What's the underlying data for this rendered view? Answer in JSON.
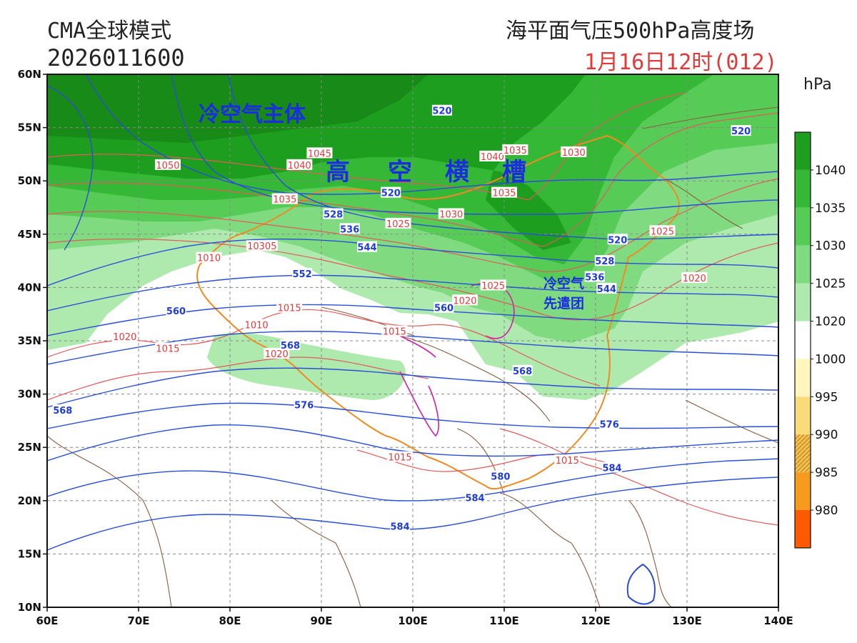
{
  "header": {
    "model": "CMA全球模式",
    "run": "2026011600",
    "product": "海平面气压500hPa高度场",
    "valid": "1月16日12时(012)",
    "unit": "hPa"
  },
  "annotations": {
    "cold_main": "冷空气主体",
    "trough": [
      "高",
      "空",
      "横",
      "槽"
    ],
    "cold_front_1": "冷空气",
    "cold_front_2": "先遣团"
  },
  "axes": {
    "lat_labels": [
      "60N",
      "55N",
      "50N",
      "45N",
      "40N",
      "35N",
      "30N",
      "25N",
      "20N",
      "15N",
      "10N"
    ],
    "lon_labels": [
      "60E",
      "70E",
      "80E",
      "90E",
      "100E",
      "110E",
      "120E",
      "130E",
      "140E"
    ]
  },
  "height_labels": [
    {
      "t": "520",
      "lon": 103.2,
      "lat": 56.6
    },
    {
      "t": "520",
      "lon": 135.9,
      "lat": 54.7
    },
    {
      "t": "520",
      "lon": 97.6,
      "lat": 48.9
    },
    {
      "t": "528",
      "lon": 91.3,
      "lat": 46.9
    },
    {
      "t": "536",
      "lon": 93.1,
      "lat": 45.5
    },
    {
      "t": "544",
      "lon": 95.0,
      "lat": 43.8
    },
    {
      "t": "552",
      "lon": 87.9,
      "lat": 41.3
    },
    {
      "t": "520",
      "lon": 122.4,
      "lat": 44.5
    },
    {
      "t": "528",
      "lon": 121.0,
      "lat": 42.5
    },
    {
      "t": "536",
      "lon": 119.9,
      "lat": 41.0
    },
    {
      "t": "544",
      "lon": 121.2,
      "lat": 39.9
    },
    {
      "t": "560",
      "lon": 74.1,
      "lat": 37.8
    },
    {
      "t": "568",
      "lon": 86.6,
      "lat": 34.6
    },
    {
      "t": "560",
      "lon": 103.4,
      "lat": 38.1
    },
    {
      "t": "568",
      "lon": 112.0,
      "lat": 32.2
    },
    {
      "t": "576",
      "lon": 88.1,
      "lat": 29.0
    },
    {
      "t": "576",
      "lon": 121.5,
      "lat": 27.2
    },
    {
      "t": "568",
      "lon": 61.7,
      "lat": 28.5
    },
    {
      "t": "580",
      "lon": 109.6,
      "lat": 22.3
    },
    {
      "t": "584",
      "lon": 121.8,
      "lat": 23.1
    },
    {
      "t": "584",
      "lon": 106.8,
      "lat": 20.3
    },
    {
      "t": "584",
      "lon": 98.6,
      "lat": 17.6
    }
  ],
  "pressure_labels": [
    {
      "t": "1050",
      "lon": 73.2,
      "lat": 51.5
    },
    {
      "t": "1045",
      "lon": 89.8,
      "lat": 52.6
    },
    {
      "t": "1040",
      "lon": 87.6,
      "lat": 51.5
    },
    {
      "t": "1040",
      "lon": 108.7,
      "lat": 52.3
    },
    {
      "t": "1035",
      "lon": 111.2,
      "lat": 52.9
    },
    {
      "t": "1030",
      "lon": 117.6,
      "lat": 52.7
    },
    {
      "t": "1035",
      "lon": 110.0,
      "lat": 48.9
    },
    {
      "t": "1035",
      "lon": 86.0,
      "lat": 48.3
    },
    {
      "t": "1030",
      "lon": 104.2,
      "lat": 46.9
    },
    {
      "t": "1025",
      "lon": 98.4,
      "lat": 46.0
    },
    {
      "t": "1025",
      "lon": 127.3,
      "lat": 45.3
    },
    {
      "t": "10305",
      "lon": 83.5,
      "lat": 43.9
    },
    {
      "t": "1010",
      "lon": 77.7,
      "lat": 42.8
    },
    {
      "t": "1020",
      "lon": 130.8,
      "lat": 40.9
    },
    {
      "t": "1025",
      "lon": 108.8,
      "lat": 40.2
    },
    {
      "t": "1020",
      "lon": 105.7,
      "lat": 38.8
    },
    {
      "t": "1015",
      "lon": 86.5,
      "lat": 38.1
    },
    {
      "t": "1010",
      "lon": 82.9,
      "lat": 36.5
    },
    {
      "t": "1015",
      "lon": 98.0,
      "lat": 35.9
    },
    {
      "t": "1020",
      "lon": 68.5,
      "lat": 35.4
    },
    {
      "t": "1015",
      "lon": 73.2,
      "lat": 34.3
    },
    {
      "t": "1020",
      "lon": 85.1,
      "lat": 33.8
    },
    {
      "t": "1015",
      "lon": 98.6,
      "lat": 24.1
    },
    {
      "t": "1015",
      "lon": 116.9,
      "lat": 23.8
    }
  ],
  "colorbar": {
    "labels": [
      "1040",
      "1035",
      "1030",
      "1025",
      "1020",
      "1000",
      "995",
      "990",
      "985",
      "980"
    ],
    "colors": [
      "#1e9e1e",
      "#35b835",
      "#56cc56",
      "#80db80",
      "#aeeaae",
      "#ffffff",
      "#fff6be",
      "#f8dc79",
      "#f3c04f",
      "#f79b1f",
      "#ff5a00"
    ]
  },
  "colors": {
    "height_contour": "#2a4ed8",
    "pressure_contour": "#e25a5a",
    "coast": "#8b5a3c",
    "china_border": "#f08a22",
    "province": "#d21da8",
    "grid": "#888888"
  }
}
